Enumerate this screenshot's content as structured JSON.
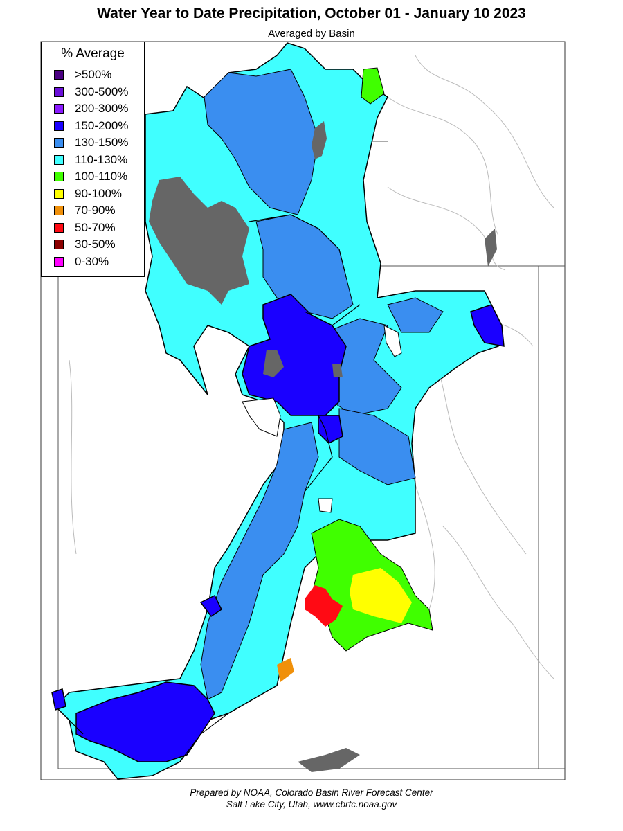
{
  "map": {
    "title": "Water Year to Date Precipitation, October 01  - January 10 2023",
    "subtitle": "Averaged by Basin"
  },
  "legend": {
    "title": "% Average",
    "items": [
      {
        "label": ">500%",
        "color": "#4b0082"
      },
      {
        "label": "300-500%",
        "color": "#6a0fd9"
      },
      {
        "label": "200-300%",
        "color": "#8a1aff"
      },
      {
        "label": "150-200%",
        "color": "#1a00ff"
      },
      {
        "label": "130-150%",
        "color": "#3a8ef0"
      },
      {
        "label": "110-130%",
        "color": "#40ffff"
      },
      {
        "label": "100-110%",
        "color": "#40ff00"
      },
      {
        "label": "90-100%",
        "color": "#ffff00"
      },
      {
        "label": "70-90%",
        "color": "#f0900a"
      },
      {
        "label": "50-70%",
        "color": "#ff0a14"
      },
      {
        "label": "30-50%",
        "color": "#8b0000"
      },
      {
        "label": "0-30%",
        "color": "#ff00ff"
      }
    ]
  },
  "credit": {
    "line1": "Prepared by NOAA, Colorado Basin River Forecast Center",
    "line2": "Salt Lake City, Utah, www.cbrfc.noaa.gov"
  }
}
